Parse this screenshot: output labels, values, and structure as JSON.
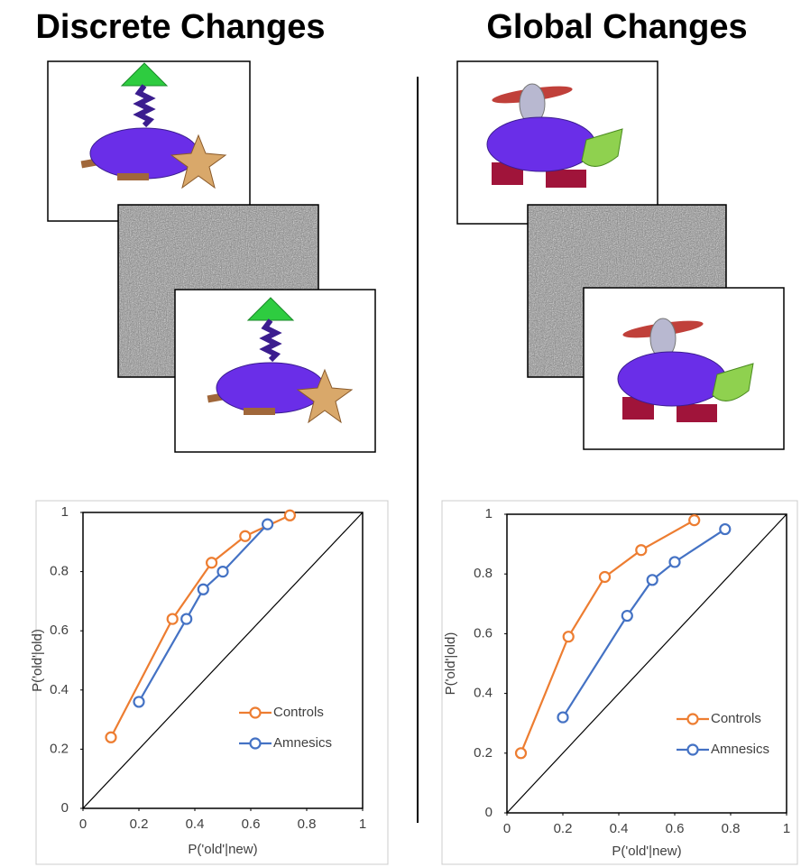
{
  "chart_data": [
    {
      "type": "line",
      "title": "Discrete Changes",
      "x_label": "P('old'|new)",
      "y_label": "P('old'|old)",
      "xlim": [
        0,
        1
      ],
      "ylim": [
        0,
        1
      ],
      "xticks": [
        0,
        0.2,
        0.4,
        0.6,
        0.8,
        1
      ],
      "yticks": [
        0,
        0.2,
        0.4,
        0.6,
        0.8,
        1
      ],
      "series": [
        {
          "name": "Controls",
          "color": "#ed7d31",
          "x": [
            0.1,
            0.32,
            0.46,
            0.58,
            0.74
          ],
          "values": [
            0.24,
            0.64,
            0.83,
            0.92,
            0.99
          ]
        },
        {
          "name": "Amnesics",
          "color": "#4472c4",
          "x": [
            0.2,
            0.37,
            0.43,
            0.5,
            0.66
          ],
          "values": [
            0.36,
            0.64,
            0.74,
            0.8,
            0.96
          ]
        }
      ]
    },
    {
      "type": "line",
      "title": "Global Changes",
      "x_label": "P('old'|new)",
      "y_label": "P('old'|old)",
      "xlim": [
        0,
        1
      ],
      "ylim": [
        0,
        1
      ],
      "xticks": [
        0,
        0.2,
        0.4,
        0.6,
        0.8,
        1
      ],
      "yticks": [
        0,
        0.2,
        0.4,
        0.6,
        0.8,
        1
      ],
      "series": [
        {
          "name": "Controls",
          "color": "#ed7d31",
          "x": [
            0.05,
            0.22,
            0.35,
            0.48,
            0.67
          ],
          "values": [
            0.2,
            0.59,
            0.79,
            0.88,
            0.98
          ]
        },
        {
          "name": "Amnesics",
          "color": "#4472c4",
          "x": [
            0.2,
            0.43,
            0.52,
            0.6,
            0.78
          ],
          "values": [
            0.32,
            0.66,
            0.78,
            0.84,
            0.95
          ]
        }
      ]
    }
  ]
}
